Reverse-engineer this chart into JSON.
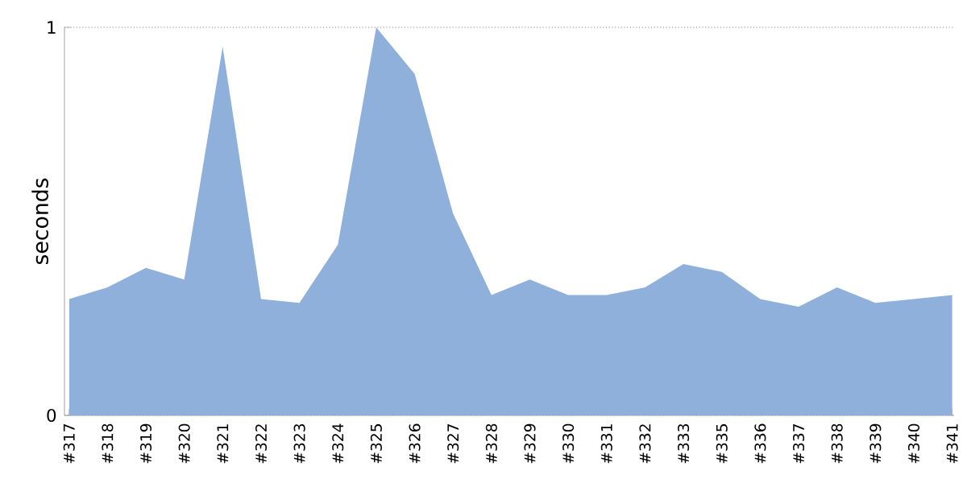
{
  "chart_data": {
    "type": "area",
    "ylabel": "seconds",
    "categories": [
      "#317",
      "#318",
      "#319",
      "#320",
      "#321",
      "#322",
      "#323",
      "#324",
      "#325",
      "#326",
      "#327",
      "#328",
      "#329",
      "#330",
      "#331",
      "#332",
      "#333",
      "#335",
      "#336",
      "#337",
      "#338",
      "#339",
      "#340",
      "#341"
    ],
    "values": [
      0.3,
      0.33,
      0.38,
      0.35,
      0.95,
      0.3,
      0.29,
      0.44,
      1.0,
      0.88,
      0.52,
      0.31,
      0.35,
      0.31,
      0.31,
      0.33,
      0.39,
      0.37,
      0.3,
      0.28,
      0.33,
      0.29,
      0.3,
      0.31
    ],
    "color": "#8eb0da",
    "ylim": [
      0,
      1
    ],
    "yticks": [
      0,
      1
    ],
    "grid": "y",
    "legend": false
  }
}
